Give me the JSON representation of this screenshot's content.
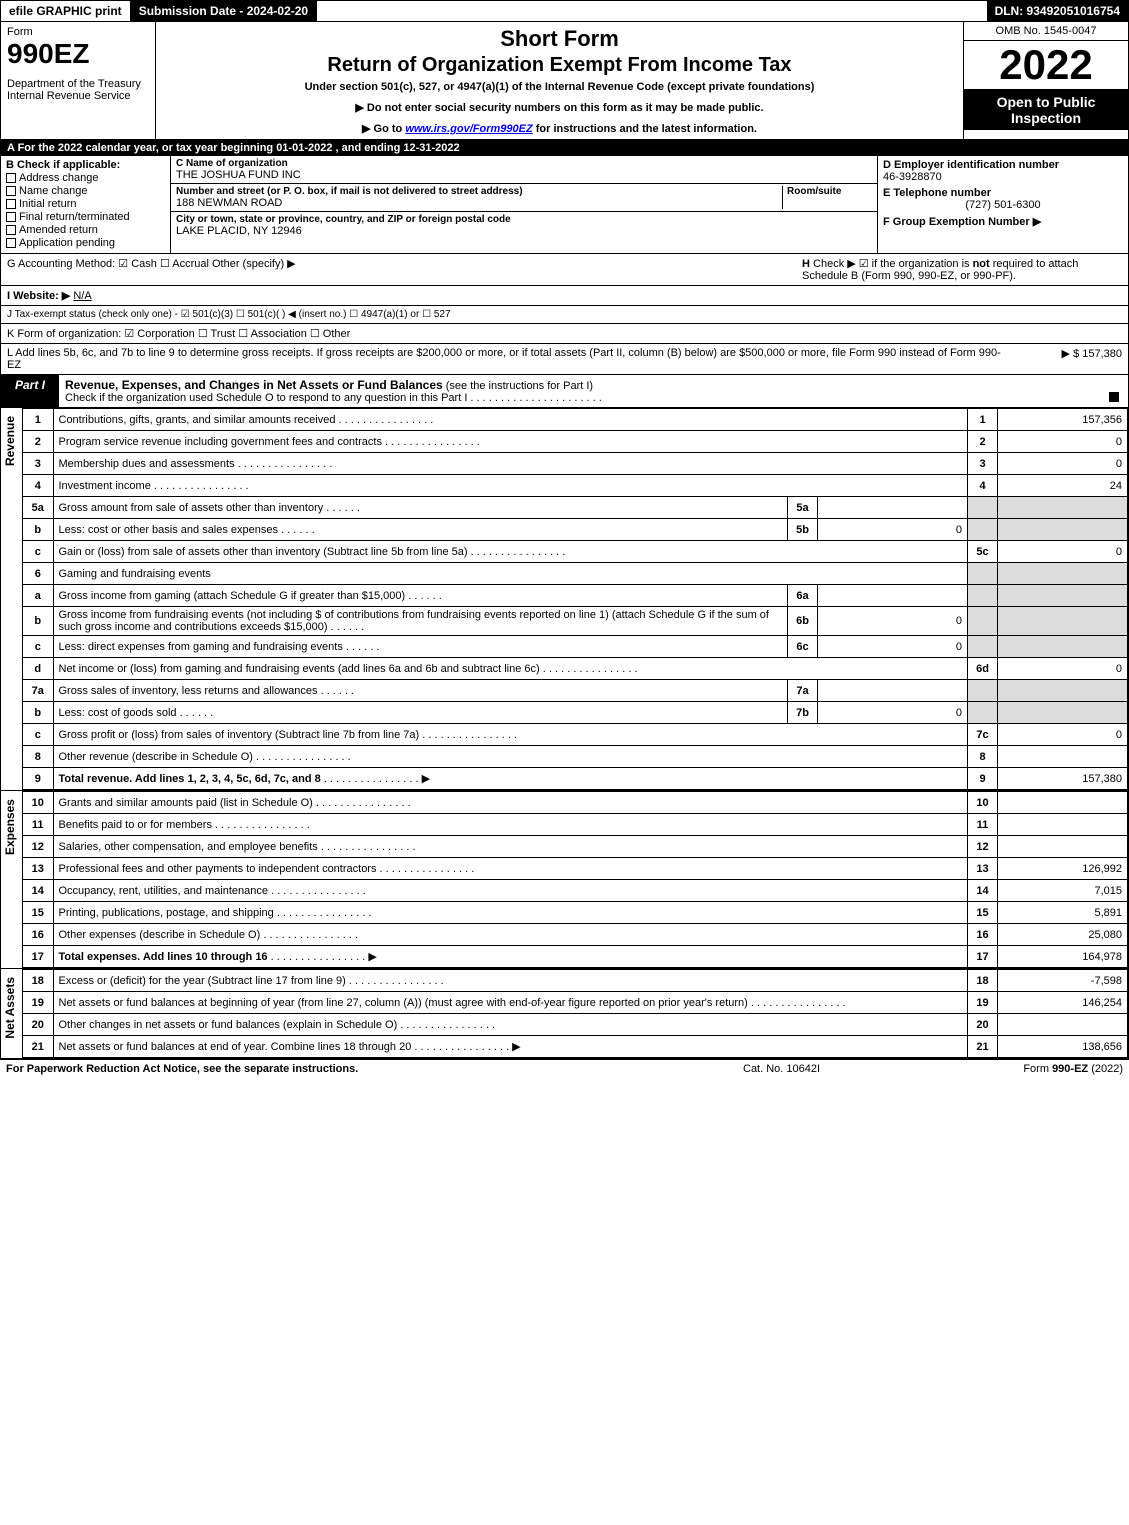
{
  "topbar": {
    "efile": "efile GRAPHIC print",
    "subdate": "Submission Date - 2024-02-20",
    "dln": "DLN: 93492051016754"
  },
  "hdr": {
    "form": "Form",
    "formnum": "990EZ",
    "dept": "Department of the Treasury\nInternal Revenue Service",
    "sf": "Short Form",
    "ret": "Return of Organization Exempt From Income Tax",
    "sub": "Under section 501(c), 527, or 4947(a)(1) of the Internal Revenue Code (except private foundations)",
    "instr1": "▶ Do not enter social security numbers on this form as it may be made public.",
    "instr2": "▶ Go to www.irs.gov/Form990EZ for instructions and the latest information.",
    "omb": "OMB No. 1545-0047",
    "year": "2022",
    "opi": "Open to Public Inspection"
  },
  "rowA": "A  For the 2022 calendar year, or tax year beginning 01-01-2022 , and ending 12-31-2022",
  "B": {
    "hdr": "B  Check if applicable:",
    "opts": [
      "Address change",
      "Name change",
      "Initial return",
      "Final return/terminated",
      "Amended return",
      "Application pending"
    ]
  },
  "C": {
    "c1lbl": "C Name of organization",
    "c1": "THE JOSHUA FUND INC",
    "c2lbl": "Number and street (or P. O. box, if mail is not delivered to street address)",
    "c2rm": "Room/suite",
    "c2": "188 NEWMAN ROAD",
    "c3lbl": "City or town, state or province, country, and ZIP or foreign postal code",
    "c3": "LAKE PLACID, NY  12946"
  },
  "D": {
    "d1lbl": "D Employer identification number",
    "d1": "46-3928870",
    "d2lbl": "E Telephone number",
    "d2": "(727) 501-6300",
    "d3lbl": "F Group Exemption Number   ▶"
  },
  "G": "G Accounting Method:   ☑ Cash  ☐ Accrual  Other (specify) ▶",
  "H": "H  Check ▶ ☑ if the organization is not required to attach Schedule B (Form 990, 990-EZ, or 990-PF).",
  "I": "I Website: ▶ N/A",
  "J": "J Tax-exempt status (check only one) - ☑ 501(c)(3) ☐ 501(c)(  ) ◀ (insert no.) ☐ 4947(a)(1) or ☐ 527",
  "K": "K Form of organization:  ☑ Corporation  ☐ Trust  ☐ Association  ☐ Other",
  "L": "L Add lines 5b, 6c, and 7b to line 9 to determine gross receipts. If gross receipts are $200,000 or more, or if total assets (Part II, column (B) below) are $500,000 or more, file Form 990 instead of Form 990-EZ",
  "Lamt": "▶ $ 157,380",
  "part1": {
    "tab": "Part I",
    "title": "Revenue, Expenses, and Changes in Net Assets or Fund Balances",
    "title2": " (see the instructions for Part I)",
    "sub": "Check if the organization used Schedule O to respond to any question in this Part I"
  },
  "rows": [
    {
      "n": "1",
      "d": "Contributions, gifts, grants, and similar amounts received",
      "r": "1",
      "a": "157,356"
    },
    {
      "n": "2",
      "d": "Program service revenue including government fees and contracts",
      "r": "2",
      "a": "0"
    },
    {
      "n": "3",
      "d": "Membership dues and assessments",
      "r": "3",
      "a": "0"
    },
    {
      "n": "4",
      "d": "Investment income",
      "r": "4",
      "a": "24"
    },
    {
      "n": "5a",
      "d": "Gross amount from sale of assets other than inventory",
      "sn": "5a",
      "sa": ""
    },
    {
      "n": "b",
      "d": "Less: cost or other basis and sales expenses",
      "sn": "5b",
      "sa": "0"
    },
    {
      "n": "c",
      "d": "Gain or (loss) from sale of assets other than inventory (Subtract line 5b from line 5a)",
      "r": "5c",
      "a": "0"
    },
    {
      "n": "6",
      "d": "Gaming and fundraising events"
    },
    {
      "n": "a",
      "d": "Gross income from gaming (attach Schedule G if greater than $15,000)",
      "sn": "6a",
      "sa": ""
    },
    {
      "n": "b",
      "d": "Gross income from fundraising events (not including $             of contributions from fundraising events reported on line 1) (attach Schedule G if the sum of such gross income and contributions exceeds $15,000)",
      "sn": "6b",
      "sa": "0"
    },
    {
      "n": "c",
      "d": "Less: direct expenses from gaming and fundraising events",
      "sn": "6c",
      "sa": "0"
    },
    {
      "n": "d",
      "d": "Net income or (loss) from gaming and fundraising events (add lines 6a and 6b and subtract line 6c)",
      "r": "6d",
      "a": "0"
    },
    {
      "n": "7a",
      "d": "Gross sales of inventory, less returns and allowances",
      "sn": "7a",
      "sa": ""
    },
    {
      "n": "b",
      "d": "Less: cost of goods sold",
      "sn": "7b",
      "sa": "0"
    },
    {
      "n": "c",
      "d": "Gross profit or (loss) from sales of inventory (Subtract line 7b from line 7a)",
      "r": "7c",
      "a": "0"
    },
    {
      "n": "8",
      "d": "Other revenue (describe in Schedule O)",
      "r": "8",
      "a": ""
    },
    {
      "n": "9",
      "d": "Total revenue. Add lines 1, 2, 3, 4, 5c, 6d, 7c, and 8",
      "r": "9",
      "a": "157,380",
      "b": true,
      "arrow": true
    }
  ],
  "exp": [
    {
      "n": "10",
      "d": "Grants and similar amounts paid (list in Schedule O)",
      "r": "10",
      "a": ""
    },
    {
      "n": "11",
      "d": "Benefits paid to or for members",
      "r": "11",
      "a": ""
    },
    {
      "n": "12",
      "d": "Salaries, other compensation, and employee benefits",
      "r": "12",
      "a": ""
    },
    {
      "n": "13",
      "d": "Professional fees and other payments to independent contractors",
      "r": "13",
      "a": "126,992"
    },
    {
      "n": "14",
      "d": "Occupancy, rent, utilities, and maintenance",
      "r": "14",
      "a": "7,015"
    },
    {
      "n": "15",
      "d": "Printing, publications, postage, and shipping",
      "r": "15",
      "a": "5,891"
    },
    {
      "n": "16",
      "d": "Other expenses (describe in Schedule O)",
      "r": "16",
      "a": "25,080"
    },
    {
      "n": "17",
      "d": "Total expenses. Add lines 10 through 16",
      "r": "17",
      "a": "164,978",
      "b": true,
      "arrow": true
    }
  ],
  "na": [
    {
      "n": "18",
      "d": "Excess or (deficit) for the year (Subtract line 17 from line 9)",
      "r": "18",
      "a": "-7,598"
    },
    {
      "n": "19",
      "d": "Net assets or fund balances at beginning of year (from line 27, column (A)) (must agree with end-of-year figure reported on prior year's return)",
      "r": "19",
      "a": "146,254"
    },
    {
      "n": "20",
      "d": "Other changes in net assets or fund balances (explain in Schedule O)",
      "r": "20",
      "a": ""
    },
    {
      "n": "21",
      "d": "Net assets or fund balances at end of year. Combine lines 18 through 20",
      "r": "21",
      "a": "138,656",
      "arrow": true
    }
  ],
  "sidelabels": {
    "rev": "Revenue",
    "exp": "Expenses",
    "na": "Net Assets"
  },
  "ftr": {
    "l": "For Paperwork Reduction Act Notice, see the separate instructions.",
    "m": "Cat. No. 10642I",
    "r": "Form 990-EZ (2022)"
  }
}
